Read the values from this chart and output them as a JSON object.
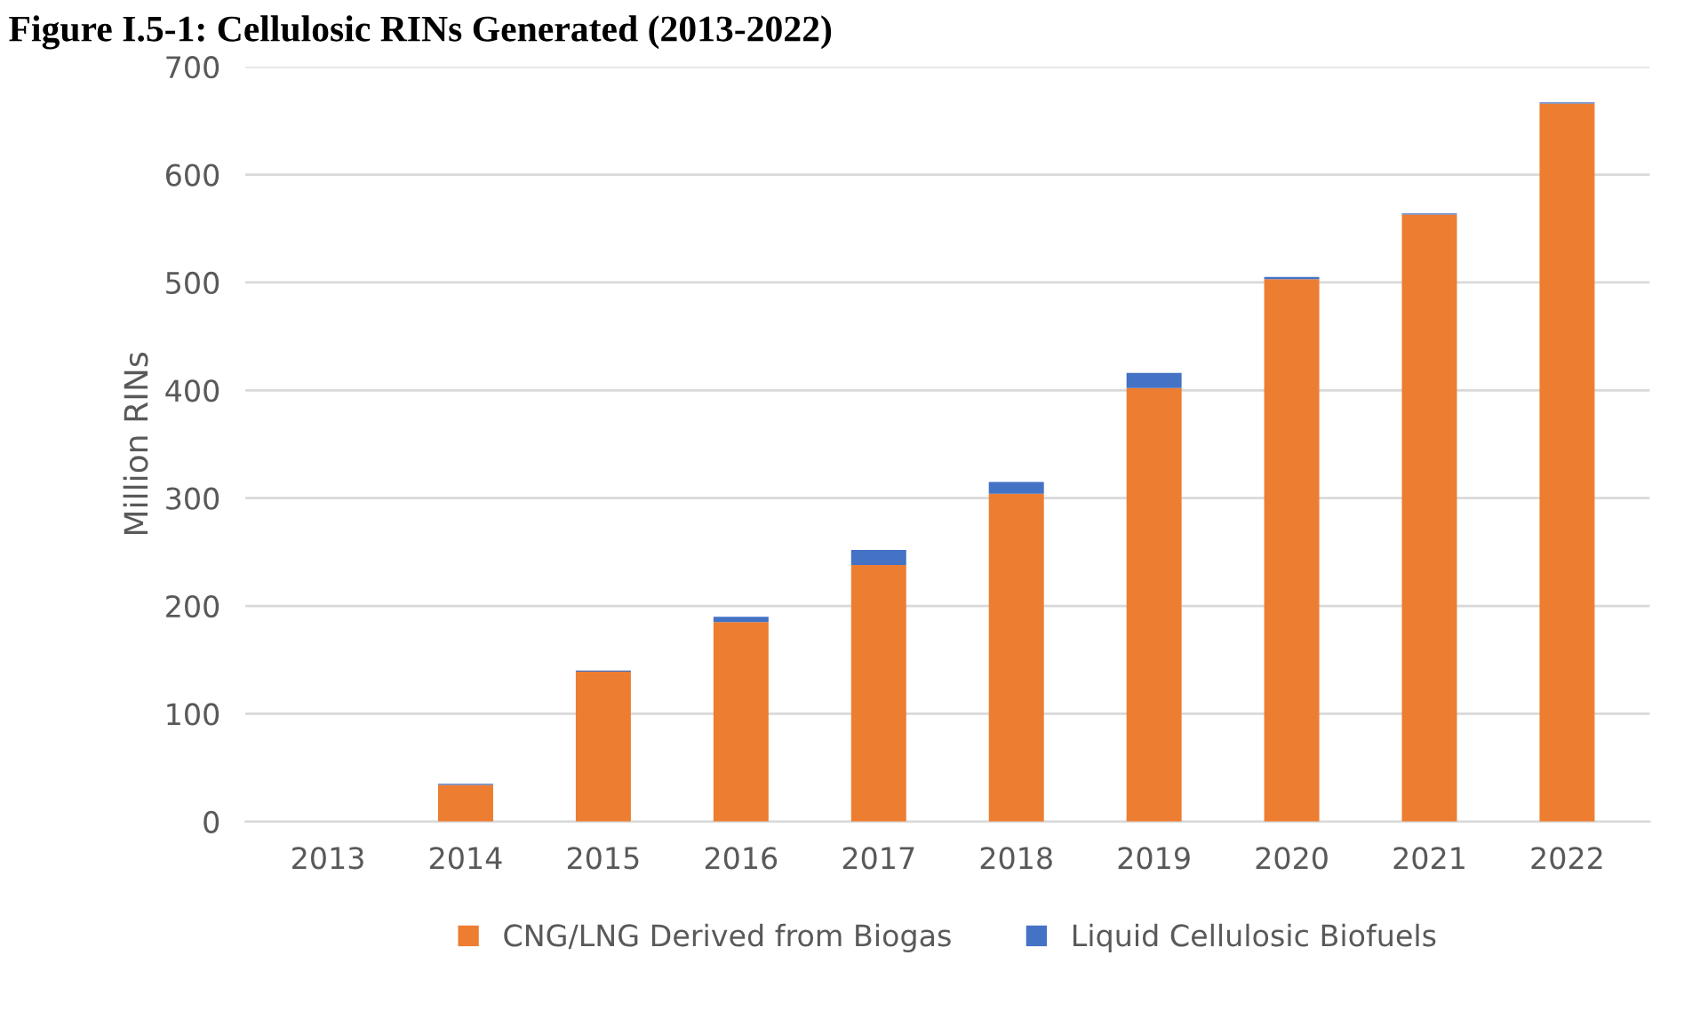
{
  "chart_data": {
    "type": "bar",
    "title": "Figure I.5-1: Cellulosic RINs Generated (2013-2022)",
    "ylabel": "Million RINs",
    "categories": [
      "2013",
      "2014",
      "2015",
      "2016",
      "2017",
      "2018",
      "2019",
      "2020",
      "2021",
      "2022"
    ],
    "stacked": true,
    "series": [
      {
        "name": "CNG/LNG Derived from Biogas",
        "color": "#ed7d31",
        "values": [
          0,
          34,
          139,
          185,
          238,
          304,
          402,
          503,
          563,
          666
        ]
      },
      {
        "name": "Liquid Cellulosic Biofuels",
        "color": "#4472c4",
        "values": [
          0,
          1,
          1,
          5,
          14,
          11,
          14,
          2,
          1,
          1
        ]
      }
    ],
    "ylim": [
      0,
      700
    ],
    "yticks": [
      0,
      100,
      200,
      300,
      400,
      500,
      600,
      700
    ],
    "grid": "y",
    "legend": "bottom"
  }
}
